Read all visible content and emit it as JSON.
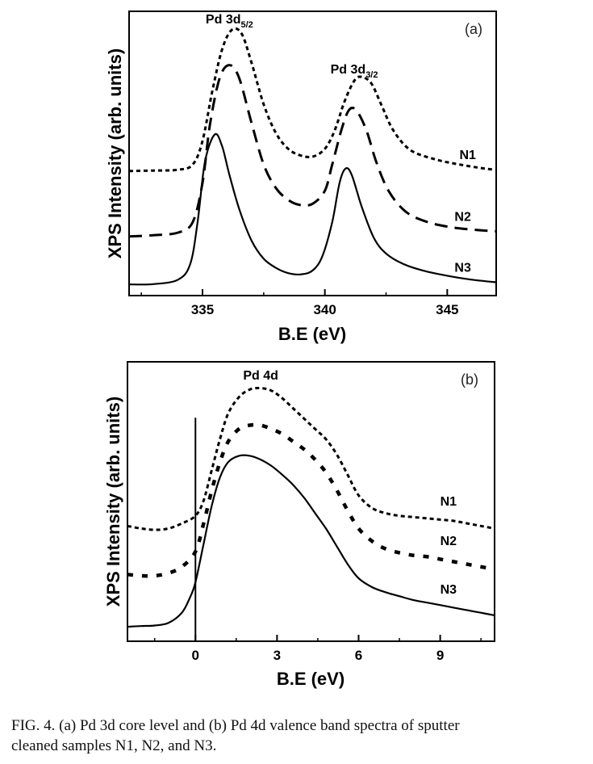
{
  "caption": {
    "line1": "FIG. 4. (a) Pd  3d core level and (b) Pd  4d valence band spectra of sputter",
    "line2": "cleaned samples N1, N2, and N3."
  },
  "chart_data": [
    {
      "type": "line",
      "panel_label": "(a)",
      "xlabel": "B.E (eV)",
      "ylabel": "XPS Intensity (arb. units)",
      "xlim": [
        332,
        347
      ],
      "ylim": [
        0,
        1
      ],
      "xticks": [
        335,
        340,
        345
      ],
      "yticks_shown": false,
      "grid": false,
      "annotations": [
        {
          "base": "Pd 3d",
          "sub": "5/2",
          "x": 336.1,
          "y": 0.99
        },
        {
          "base": "Pd 3d",
          "sub": "3/2",
          "x": 341.2,
          "y": 0.8
        }
      ],
      "series": [
        {
          "name": "N1",
          "style": "dotted",
          "x": [
            332,
            333,
            334,
            334.6,
            335.0,
            335.4,
            335.8,
            336.2,
            336.6,
            337.0,
            337.5,
            338.0,
            338.5,
            339.0,
            339.5,
            340.0,
            340.4,
            340.8,
            341.2,
            341.5,
            341.9,
            342.3,
            342.8,
            343.5,
            344.5,
            345.5,
            346.5,
            347
          ],
          "y": [
            0.445,
            0.447,
            0.45,
            0.47,
            0.56,
            0.75,
            0.91,
            0.985,
            0.97,
            0.86,
            0.7,
            0.59,
            0.53,
            0.505,
            0.5,
            0.53,
            0.6,
            0.71,
            0.79,
            0.805,
            0.78,
            0.7,
            0.6,
            0.525,
            0.49,
            0.47,
            0.455,
            0.45
          ]
        },
        {
          "name": "N2",
          "style": "dashed",
          "x": [
            332,
            333,
            334,
            334.6,
            335.0,
            335.3,
            335.7,
            336.1,
            336.5,
            337.0,
            337.5,
            338.0,
            338.5,
            339.0,
            339.5,
            340.0,
            340.3,
            340.7,
            341.0,
            341.3,
            341.7,
            342.1,
            342.6,
            343.3,
            344.2,
            345.2,
            346.2,
            347
          ],
          "y": [
            0.195,
            0.2,
            0.21,
            0.25,
            0.4,
            0.62,
            0.8,
            0.85,
            0.8,
            0.63,
            0.47,
            0.38,
            0.335,
            0.315,
            0.32,
            0.37,
            0.47,
            0.61,
            0.68,
            0.675,
            0.6,
            0.48,
            0.37,
            0.29,
            0.25,
            0.23,
            0.22,
            0.215
          ]
        },
        {
          "name": "N3",
          "style": "solid",
          "x": [
            332,
            333,
            334,
            334.5,
            334.8,
            335.1,
            335.5,
            335.8,
            336.1,
            336.5,
            337.0,
            337.5,
            338.0,
            338.5,
            339.0,
            339.5,
            339.9,
            340.3,
            340.6,
            340.85,
            341.1,
            341.5,
            342.0,
            342.5,
            343.2,
            344.0,
            345.0,
            346.0,
            347
          ],
          "y": [
            0.012,
            0.013,
            0.03,
            0.09,
            0.25,
            0.48,
            0.585,
            0.54,
            0.43,
            0.3,
            0.18,
            0.11,
            0.075,
            0.055,
            0.05,
            0.065,
            0.12,
            0.25,
            0.4,
            0.455,
            0.43,
            0.31,
            0.19,
            0.13,
            0.09,
            0.065,
            0.045,
            0.03,
            0.02
          ]
        }
      ],
      "series_label_positions": [
        {
          "name": "N1",
          "x": 345.5,
          "y": 0.49
        },
        {
          "name": "N2",
          "x": 345.3,
          "y": 0.255
        },
        {
          "name": "N3",
          "x": 345.3,
          "y": 0.06
        }
      ]
    },
    {
      "type": "line",
      "panel_label": "(b)",
      "xlabel": "B.E (eV)",
      "ylabel": "XPS Intensity (arb. units)",
      "xlim": [
        -2.5,
        11
      ],
      "ylim": [
        0,
        1
      ],
      "xticks": [
        0,
        3,
        6,
        9
      ],
      "yticks_shown": false,
      "grid": false,
      "fermi_line_x": 0,
      "annotations": [
        {
          "base": "Pd 4d",
          "sub": "",
          "x": 2.4,
          "y": 0.975
        }
      ],
      "series": [
        {
          "name": "N1",
          "style": "dotted",
          "x": [
            -2.5,
            -2,
            -1.5,
            -1,
            -0.5,
            0,
            0.3,
            0.6,
            0.9,
            1.2,
            1.6,
            2.0,
            2.4,
            2.8,
            3.2,
            3.6,
            4.0,
            4.4,
            4.8,
            5.2,
            5.6,
            6.0,
            6.5,
            7.0,
            7.5,
            8.0,
            8.5,
            9.0,
            9.5,
            10.0,
            10.5,
            11
          ],
          "y": [
            0.42,
            0.41,
            0.405,
            0.41,
            0.43,
            0.46,
            0.52,
            0.64,
            0.76,
            0.86,
            0.925,
            0.955,
            0.96,
            0.95,
            0.92,
            0.88,
            0.84,
            0.8,
            0.76,
            0.7,
            0.62,
            0.54,
            0.49,
            0.47,
            0.46,
            0.455,
            0.45,
            0.445,
            0.44,
            0.43,
            0.42,
            0.41
          ]
        },
        {
          "name": "N2",
          "style": "dashed-hatched",
          "x": [
            -2.5,
            -2,
            -1.5,
            -1,
            -0.5,
            0,
            0.3,
            0.6,
            0.9,
            1.2,
            1.6,
            2.0,
            2.4,
            2.8,
            3.2,
            3.6,
            4.0,
            4.4,
            4.8,
            5.2,
            5.6,
            6.0,
            6.5,
            7.0,
            7.5,
            8.0,
            8.5,
            9.0,
            9.5,
            10.0,
            10.5,
            11
          ],
          "y": [
            0.23,
            0.225,
            0.225,
            0.235,
            0.26,
            0.32,
            0.43,
            0.56,
            0.67,
            0.75,
            0.8,
            0.815,
            0.815,
            0.8,
            0.78,
            0.75,
            0.72,
            0.68,
            0.63,
            0.56,
            0.48,
            0.41,
            0.36,
            0.33,
            0.315,
            0.305,
            0.3,
            0.29,
            0.28,
            0.27,
            0.26,
            0.25
          ]
        },
        {
          "name": "N3",
          "style": "solid",
          "x": [
            -2.5,
            -2,
            -1.5,
            -1,
            -0.5,
            -0.2,
            0,
            0.3,
            0.6,
            0.9,
            1.2,
            1.6,
            2.0,
            2.4,
            2.8,
            3.2,
            3.6,
            4.0,
            4.4,
            4.8,
            5.2,
            5.6,
            6.0,
            6.5,
            7.0,
            7.5,
            8.0,
            8.5,
            9.0,
            9.5,
            10.0,
            10.5,
            11
          ],
          "y": [
            0.025,
            0.028,
            0.03,
            0.04,
            0.08,
            0.14,
            0.2,
            0.35,
            0.5,
            0.61,
            0.67,
            0.695,
            0.695,
            0.68,
            0.655,
            0.62,
            0.58,
            0.53,
            0.47,
            0.41,
            0.34,
            0.27,
            0.215,
            0.18,
            0.16,
            0.145,
            0.13,
            0.12,
            0.11,
            0.1,
            0.09,
            0.08,
            0.07
          ]
        }
      ],
      "series_label_positions": [
        {
          "name": "N1",
          "x": 9.0,
          "y": 0.5
        },
        {
          "name": "N2",
          "x": 9.0,
          "y": 0.345
        },
        {
          "name": "N3",
          "x": 9.0,
          "y": 0.155
        }
      ]
    }
  ]
}
